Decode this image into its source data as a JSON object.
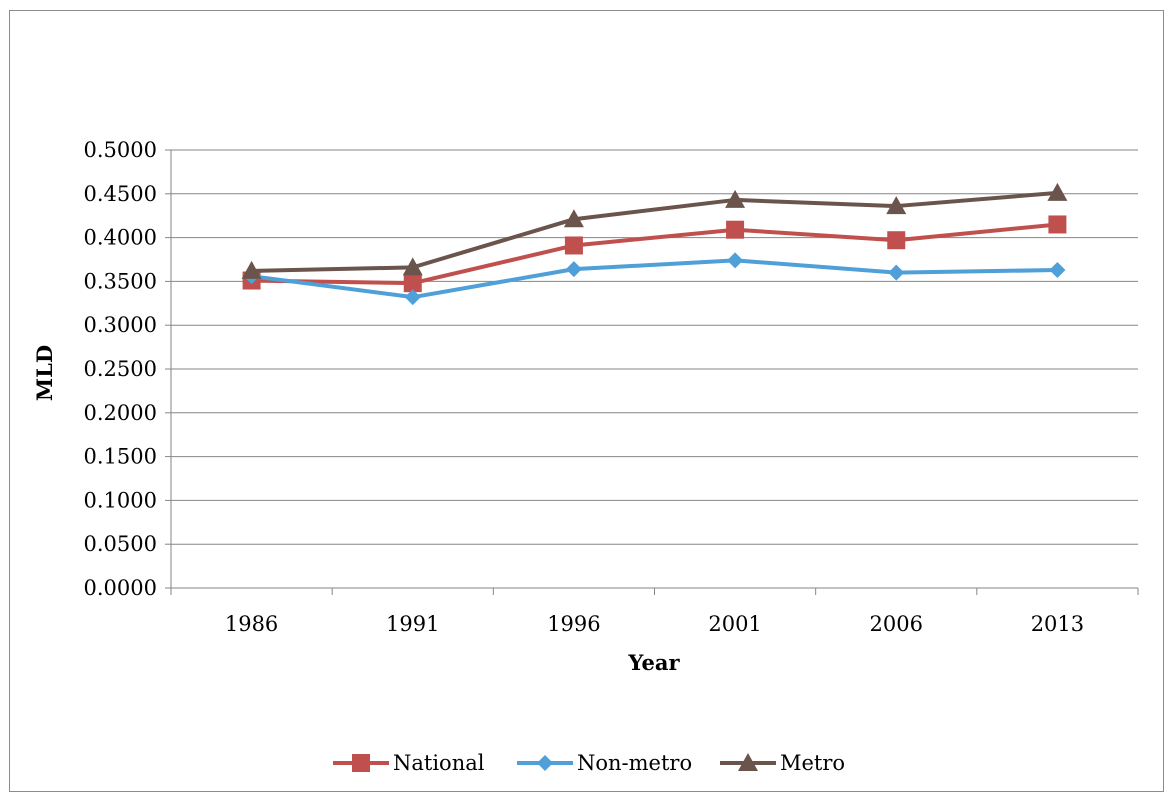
{
  "chart_data": {
    "type": "line",
    "title": "",
    "xlabel": "Year",
    "ylabel": "MLD",
    "categories": [
      "1986",
      "1991",
      "1996",
      "2001",
      "2006",
      "2013"
    ],
    "ylim": [
      0,
      0.5
    ],
    "yticks": [
      "0.0000",
      "0.0500",
      "0.1000",
      "0.1500",
      "0.2000",
      "0.2500",
      "0.3000",
      "0.3500",
      "0.4000",
      "0.4500",
      "0.5000"
    ],
    "grid": true,
    "legend_position": "bottom",
    "series": [
      {
        "name": "National",
        "color": "#c0504d",
        "marker": "square",
        "values": [
          0.351,
          0.348,
          0.391,
          0.409,
          0.397,
          0.415
        ]
      },
      {
        "name": "Non-metro",
        "color": "#4f9fd9",
        "marker": "diamond",
        "values": [
          0.356,
          0.332,
          0.364,
          0.374,
          0.36,
          0.363
        ]
      },
      {
        "name": "Metro",
        "color": "#6b544c",
        "marker": "triangle",
        "values": [
          0.362,
          0.366,
          0.421,
          0.443,
          0.436,
          0.451
        ]
      }
    ]
  }
}
